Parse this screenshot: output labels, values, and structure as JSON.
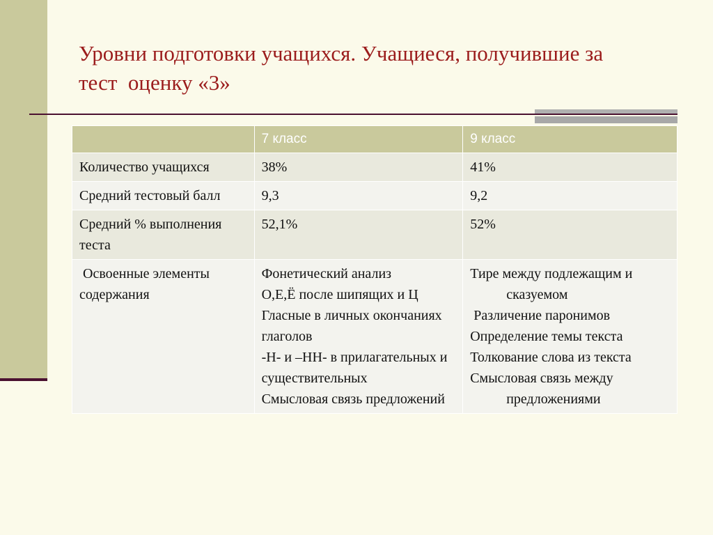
{
  "slide": {
    "title": "Уровни подготовки учащихся. Учащиеся, получившие за\nтест  оценку «3»"
  },
  "table": {
    "headers": [
      "",
      "7 класс",
      "9 класс"
    ],
    "rows": [
      {
        "label": "Количество учащихся",
        "c7": "38%",
        "c9": "41%"
      },
      {
        "label": "Средний тестовый балл",
        "c7": "9,3",
        "c9": "9,2"
      },
      {
        "label": "Средний % выполнения теста",
        "c7": "52,1%",
        "c9": "52%"
      },
      {
        "label": " Освоенные элементы содержания",
        "c7_items": [
          "Фонетический анализ",
          "О,Е,Ё после шипящих и Ц",
          "Гласные в личных окончаниях глаголов",
          "-Н- и –НН- в прилагательных и существительных",
          "Смысловая связь предложений"
        ],
        "c9_items": [
          "Тире между подлежащим и сказуемом",
          " Различение паронимов",
          "Определение темы текста",
          "Толкование слова из текста",
          "Смысловая связь между предложениями"
        ]
      }
    ]
  }
}
